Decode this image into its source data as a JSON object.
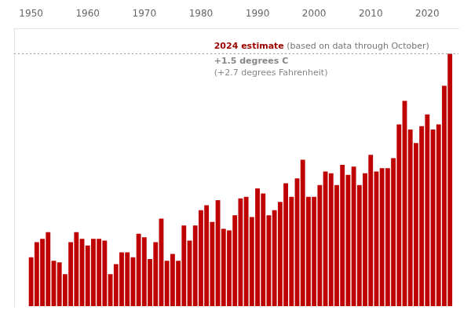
{
  "chart_data": {
    "type": "bar",
    "x": [
      1950,
      1951,
      1952,
      1953,
      1954,
      1955,
      1956,
      1957,
      1958,
      1959,
      1960,
      1961,
      1962,
      1963,
      1964,
      1965,
      1966,
      1967,
      1968,
      1969,
      1970,
      1971,
      1972,
      1973,
      1974,
      1975,
      1976,
      1977,
      1978,
      1979,
      1980,
      1981,
      1982,
      1983,
      1984,
      1985,
      1986,
      1987,
      1988,
      1989,
      1990,
      1991,
      1992,
      1993,
      1994,
      1995,
      1996,
      1997,
      1998,
      1999,
      2000,
      2001,
      2002,
      2003,
      2004,
      2005,
      2006,
      2007,
      2008,
      2009,
      2010,
      2011,
      2012,
      2013,
      2014,
      2015,
      2016,
      2017,
      2018,
      2019,
      2020,
      2021,
      2022,
      2023,
      2024
    ],
    "values": [
      0.29,
      0.38,
      0.4,
      0.44,
      0.27,
      0.26,
      0.19,
      0.38,
      0.44,
      0.4,
      0.36,
      0.4,
      0.4,
      0.39,
      0.19,
      0.25,
      0.32,
      0.32,
      0.29,
      0.43,
      0.41,
      0.28,
      0.38,
      0.52,
      0.27,
      0.31,
      0.27,
      0.48,
      0.39,
      0.48,
      0.57,
      0.6,
      0.5,
      0.63,
      0.46,
      0.45,
      0.54,
      0.64,
      0.65,
      0.53,
      0.7,
      0.67,
      0.54,
      0.57,
      0.62,
      0.73,
      0.65,
      0.76,
      0.87,
      0.65,
      0.65,
      0.72,
      0.8,
      0.79,
      0.72,
      0.84,
      0.78,
      0.83,
      0.72,
      0.79,
      0.9,
      0.8,
      0.82,
      0.82,
      0.88,
      1.08,
      1.22,
      1.05,
      0.97,
      1.07,
      1.14,
      1.05,
      1.08,
      1.31,
      1.5
    ],
    "color": "#be0000",
    "xlim": [
      1947.0,
      2025.5
    ],
    "xticks": [
      1950,
      1960,
      1970,
      1980,
      1990,
      2000,
      2010,
      2020
    ],
    "ylim": [
      0.0,
      1.65
    ],
    "grid": false,
    "tick_labels": "x",
    "reference_lines": [
      {
        "y": 1.5,
        "color": "#999999",
        "line_style": "dotted"
      }
    ],
    "annotations": [
      {
        "text": "2024 estimate",
        "color": "#9b0000"
      },
      {
        "text": " (based on data through October)",
        "color": "#777777"
      },
      {
        "text": "+1.5 degrees C",
        "color": "#888888"
      },
      {
        "text": "(+2.7 degrees Fahrenheit)",
        "color": "#888888"
      }
    ]
  }
}
